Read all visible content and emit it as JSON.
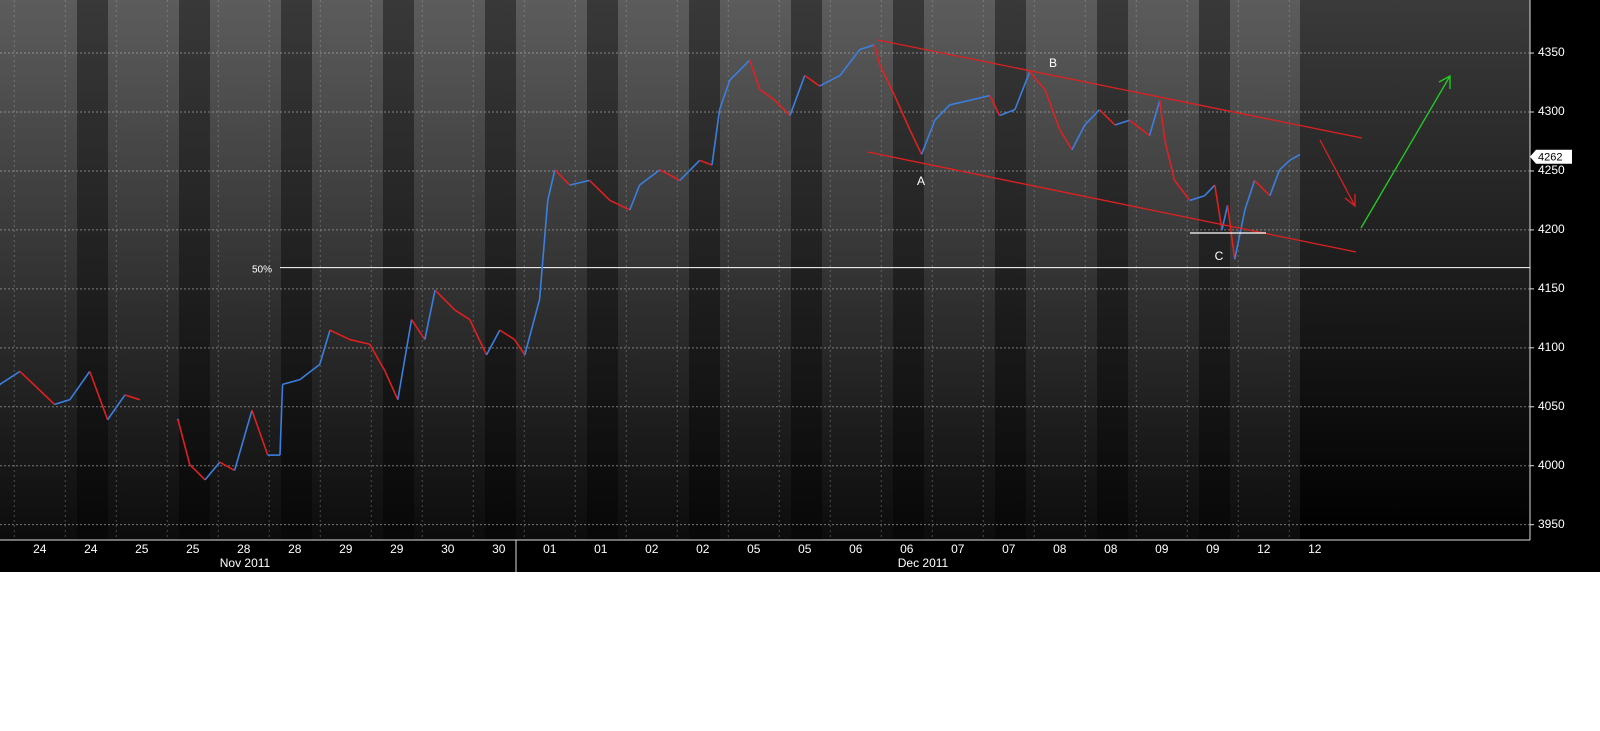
{
  "chart_data": {
    "type": "line",
    "x": [
      -0.78,
      -0.39,
      0,
      0.29,
      0.59,
      0.98,
      1.33,
      1.67,
      1.96,
      2.2,
      2.71,
      2.94,
      3.24,
      3.53,
      3.82,
      4.16,
      4.47,
      4.71,
      4.76,
      5.1,
      5.49,
      5.69,
      6.08,
      6.47,
      6.76,
      7.02,
      7.29,
      7.55,
      7.75,
      8.14,
      8.43,
      8.76,
      9.02,
      9.31,
      9.51,
      9.8,
      9.96,
      10.1,
      10.39,
      10.78,
      11.18,
      11.57,
      11.76,
      12.16,
      12.55,
      12.94,
      13.18,
      13.33,
      13.53,
      13.92,
      14.12,
      14.41,
      14.71,
      15.0,
      15.29,
      15.69,
      16.08,
      16.37,
      16.47,
      16.76,
      17.06,
      17.29,
      17.55,
      17.84,
      18.24,
      18.63,
      18.82,
      19.12,
      19.41,
      19.71,
      20.0,
      20.24,
      20.49,
      20.78,
      21.08,
      21.37,
      21.76,
      21.96,
      22.06,
      22.25,
      22.55,
      22.84,
      23.04,
      23.18,
      23.29,
      23.43,
      23.63,
      23.82,
      24.12,
      24.31,
      24.51,
      24.71
    ],
    "series": [
      {
        "up_color": "#3a7fe0",
        "down_color": "#e02020",
        "values": [
          4069,
          4080,
          4064,
          4052,
          4056,
          4080,
          4039,
          4060,
          4056,
          null,
          4039,
          4001,
          3988,
          4003,
          3996,
          4047,
          4009,
          4009,
          4069,
          4073,
          4086,
          4115,
          4107,
          4103,
          4081,
          4056,
          4124,
          4107,
          4149,
          4132,
          4124,
          4094,
          4115,
          4107,
          4094,
          4141,
          4225,
          4251,
          4238,
          4242,
          4225,
          4217,
          4238,
          4251,
          4242,
          4259,
          4255,
          4302,
          4327,
          4344,
          4319,
          4310,
          4297,
          4331,
          4322,
          4331,
          4353,
          4357,
          4340,
          4314,
          4285,
          4264,
          4293,
          4306,
          4310,
          4314,
          4297,
          4302,
          4334,
          4319,
          4285,
          4268,
          4289,
          4302,
          4289,
          4293,
          4280,
          4310,
          4276,
          4242,
          4225,
          4229,
          4238,
          4200,
          4221,
          4175,
          4217,
          4242,
          4229,
          4251,
          4259,
          4264
        ]
      }
    ],
    "xlim": [
      -0.78,
      29.22
    ],
    "ylim": [
      3937,
      4395
    ],
    "xticks": [
      {
        "value": 0,
        "label": "24"
      },
      {
        "value": 1,
        "label": "24"
      },
      {
        "value": 2,
        "label": "25"
      },
      {
        "value": 3,
        "label": "25"
      },
      {
        "value": 4,
        "label": "28"
      },
      {
        "value": 5,
        "label": "28"
      },
      {
        "value": 6,
        "label": "29"
      },
      {
        "value": 7,
        "label": "29"
      },
      {
        "value": 8,
        "label": "30"
      },
      {
        "value": 9,
        "label": "30"
      },
      {
        "value": 10,
        "label": "01"
      },
      {
        "value": 11,
        "label": "01"
      },
      {
        "value": 12,
        "label": "02"
      },
      {
        "value": 13,
        "label": "02"
      },
      {
        "value": 14,
        "label": "05"
      },
      {
        "value": 15,
        "label": "05"
      },
      {
        "value": 16,
        "label": "06"
      },
      {
        "value": 17,
        "label": "06"
      },
      {
        "value": 18,
        "label": "07"
      },
      {
        "value": 19,
        "label": "07"
      },
      {
        "value": 20,
        "label": "08"
      },
      {
        "value": 21,
        "label": "08"
      },
      {
        "value": 22,
        "label": "09"
      },
      {
        "value": 23,
        "label": "09"
      },
      {
        "value": 24,
        "label": "12"
      },
      {
        "value": 25,
        "label": "12"
      }
    ],
    "yticks": [
      3950,
      4000,
      4050,
      4100,
      4150,
      4200,
      4250,
      4300,
      4350
    ],
    "month_labels": [
      "Nov 2011",
      "Dec 2011"
    ],
    "retracement": {
      "value": 4168,
      "label": "50%"
    },
    "last_price": 4262,
    "annotations": [
      "A",
      "B",
      "C"
    ],
    "grid": true
  }
}
